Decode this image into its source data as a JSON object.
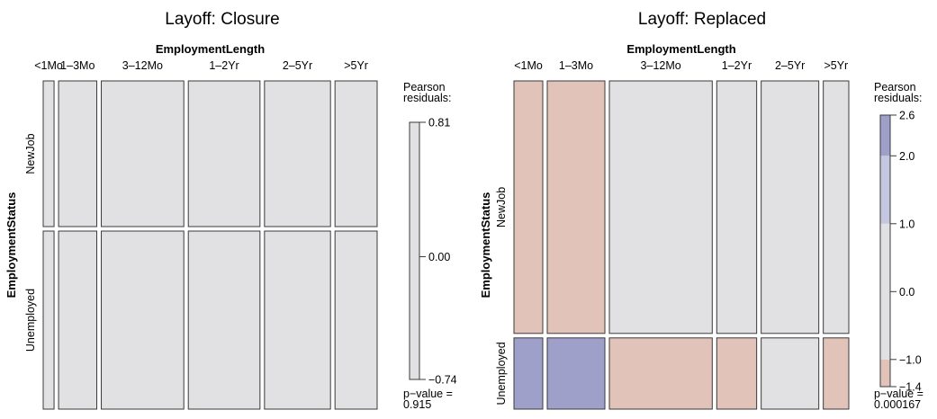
{
  "chart_data": [
    {
      "type": "mosaic",
      "title": "Layoff: Closure",
      "xlabel": "EmploymentLength",
      "ylabel": "EmploymentStatus",
      "columns": [
        "<1Mo",
        "1–3Mo",
        "3–12Mo",
        "1–2Yr",
        "2–5Yr",
        ">5Yr"
      ],
      "rows": [
        "NewJob",
        "Unemployed"
      ],
      "column_proportions": [
        0.025,
        0.088,
        0.19,
        0.165,
        0.152,
        0.097
      ],
      "row_proportions_within_column": [
        [
          0.45,
          0.55
        ],
        [
          0.45,
          0.55
        ],
        [
          0.45,
          0.55
        ],
        [
          0.45,
          0.55
        ],
        [
          0.45,
          0.55
        ],
        [
          0.45,
          0.55
        ]
      ],
      "residual_class": [
        [
          "n",
          "n"
        ],
        [
          "n",
          "n"
        ],
        [
          "n",
          "n"
        ],
        [
          "n",
          "n"
        ],
        [
          "n",
          "n"
        ],
        [
          "n",
          "n"
        ]
      ],
      "legend": {
        "title_line1": "Pearson",
        "title_line2": "residuals:",
        "min": -0.74,
        "max": 0.81,
        "ticks": [
          {
            "value": 0.81,
            "label": "0.81"
          },
          {
            "value": 0.0,
            "label": "0.00"
          },
          {
            "value": -0.74,
            "label": "−0.74"
          }
        ],
        "bands": [
          {
            "from": -0.74,
            "to": 0.81,
            "color": "#e1e1e3"
          }
        ]
      },
      "pvalue_line1": "p−value =",
      "pvalue_line2": "0.915"
    },
    {
      "type": "mosaic",
      "title": "Layoff: Replaced",
      "xlabel": "EmploymentLength",
      "ylabel": "EmploymentStatus",
      "columns": [
        "<1Mo",
        "1–3Mo",
        "3–12Mo",
        "1–2Yr",
        "2–5Yr",
        ">5Yr"
      ],
      "rows": [
        "NewJob",
        "Unemployed"
      ],
      "column_proportions": [
        0.07,
        0.14,
        0.25,
        0.097,
        0.14,
        0.062
      ],
      "row_proportions_within_column": [
        [
          0.78,
          0.22
        ],
        [
          0.78,
          0.22
        ],
        [
          0.78,
          0.22
        ],
        [
          0.78,
          0.22
        ],
        [
          0.78,
          0.22
        ],
        [
          0.78,
          0.22
        ]
      ],
      "residual_class": [
        [
          "r",
          "b"
        ],
        [
          "r",
          "b"
        ],
        [
          "n",
          "r"
        ],
        [
          "n",
          "r"
        ],
        [
          "n",
          "n"
        ],
        [
          "n",
          "r"
        ]
      ],
      "legend": {
        "title_line1": "Pearson",
        "title_line2": "residuals:",
        "min": -1.4,
        "max": 2.6,
        "ticks": [
          {
            "value": 2.6,
            "label": "2.6"
          },
          {
            "value": 2.0,
            "label": "2.0"
          },
          {
            "value": 1.0,
            "label": "1.0"
          },
          {
            "value": 0.0,
            "label": "0.0"
          },
          {
            "value": -1.0,
            "label": "−1.0"
          },
          {
            "value": -1.4,
            "label": "−1.4"
          }
        ],
        "bands": [
          {
            "from": -1.4,
            "to": -1.0,
            "color": "#e2c3b9"
          },
          {
            "from": -1.0,
            "to": 1.0,
            "color": "#e1e1e3"
          },
          {
            "from": 1.0,
            "to": 2.0,
            "color": "#c5c6df"
          },
          {
            "from": 2.0,
            "to": 2.6,
            "color": "#9fa0c9"
          }
        ]
      },
      "pvalue_line1": "p−value =",
      "pvalue_line2": "0.000167"
    }
  ],
  "colors": {
    "neutral": "#e1e1e3",
    "negative": "#e2c3b9",
    "positive": "#9fa0c9",
    "stroke": "#3a3a3a"
  }
}
